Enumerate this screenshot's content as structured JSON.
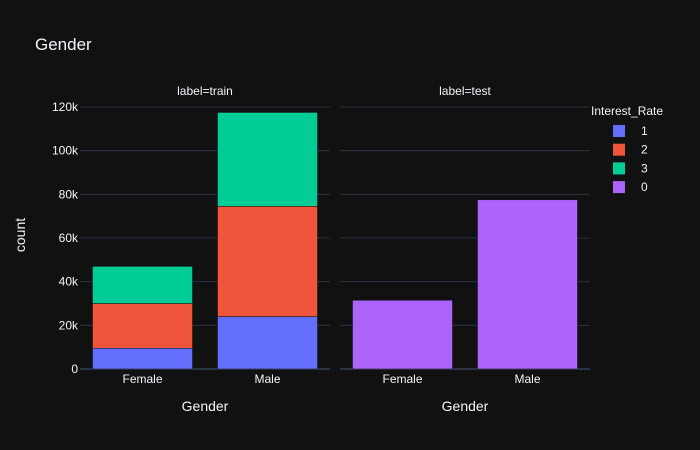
{
  "chart_data": {
    "type": "bar",
    "title": "Gender",
    "ylabel": "count",
    "xlabel": "Gender",
    "ylim": [
      0,
      120000
    ],
    "yticks": [
      0,
      20000,
      40000,
      60000,
      80000,
      100000,
      120000
    ],
    "ytick_labels": [
      "0",
      "20k",
      "40k",
      "60k",
      "80k",
      "100k",
      "120k"
    ],
    "grid": true,
    "legend": {
      "title": "Interest_Rate",
      "position": "right",
      "entries": [
        {
          "label": "1",
          "color": "#636efa"
        },
        {
          "label": "2",
          "color": "#ef553b"
        },
        {
          "label": "3",
          "color": "#00cc96"
        },
        {
          "label": "0",
          "color": "#ab63fa"
        }
      ]
    },
    "facets": [
      {
        "label": "label=train",
        "categories": [
          "Female",
          "Male"
        ],
        "series": [
          {
            "name": "1",
            "color": "#636efa",
            "values": [
              9500,
              24000
            ]
          },
          {
            "name": "2",
            "color": "#ef553b",
            "values": [
              20500,
              50500
            ]
          },
          {
            "name": "3",
            "color": "#00cc96",
            "values": [
              17000,
              43000
            ]
          }
        ]
      },
      {
        "label": "label=test",
        "categories": [
          "Female",
          "Male"
        ],
        "series": [
          {
            "name": "0",
            "color": "#ab63fa",
            "values": [
              31500,
              77500
            ]
          }
        ]
      }
    ]
  }
}
